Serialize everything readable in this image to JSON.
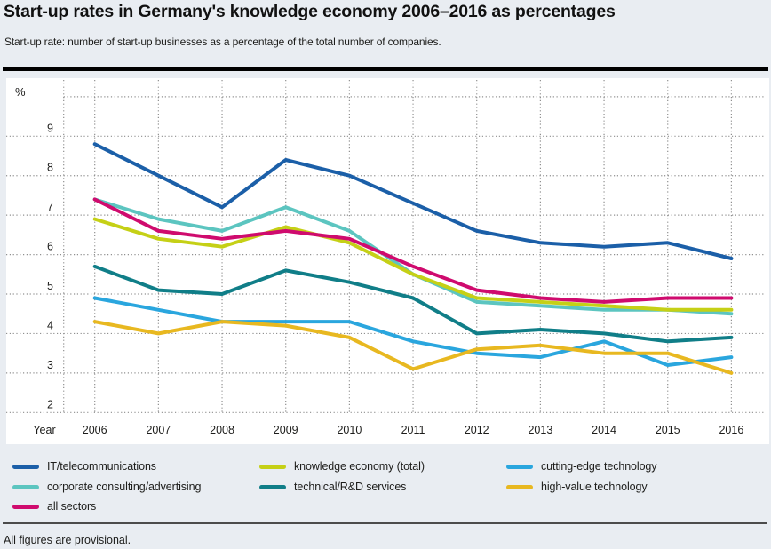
{
  "header": {
    "title": "Start-up rates in Germany's knowledge economy 2006–2016 as percentages",
    "subtitle": "Start-up rate: number of start-up businesses as a percentage of the total number of companies."
  },
  "footnote": "All figures are provisional.",
  "colors": {
    "background": "#e9edf2",
    "plot_background": "#ffffff",
    "gridline": "#8f8f8f",
    "text": "#1d1d1b"
  },
  "chart_data": {
    "type": "line",
    "title": "Start-up rates in Germany's knowledge economy 2006–2016 as percentages",
    "xlabel": "Year",
    "ylabel": "%",
    "categories": [
      "2006",
      "2007",
      "2008",
      "2009",
      "2010",
      "2011",
      "2012",
      "2013",
      "2014",
      "2015",
      "2016"
    ],
    "y_ticks": [
      9,
      8,
      7,
      6,
      5,
      4,
      3,
      2
    ],
    "gridlines_y": [
      10,
      9,
      8,
      7,
      6,
      5,
      4,
      3,
      2
    ],
    "ylim": [
      2,
      10
    ],
    "grid": "dotted",
    "legend_position": "bottom",
    "series": [
      {
        "name": "cutting-edge technology",
        "color": "#2aa6de",
        "values": [
          4.9,
          4.6,
          4.3,
          4.3,
          4.3,
          3.8,
          3.5,
          3.4,
          3.8,
          3.2,
          3.4
        ]
      },
      {
        "name": "high-value technology",
        "color": "#e8b820",
        "values": [
          4.3,
          4.0,
          4.3,
          4.2,
          3.9,
          3.1,
          3.6,
          3.7,
          3.5,
          3.5,
          3.0
        ]
      },
      {
        "name": "technical/R&D services",
        "color": "#107e88",
        "values": [
          5.7,
          5.1,
          5.0,
          5.6,
          5.3,
          4.9,
          4.0,
          4.1,
          4.0,
          3.8,
          3.9
        ]
      },
      {
        "name": "corporate consulting/advertising",
        "color": "#5cc5c0",
        "values": [
          7.4,
          6.9,
          6.6,
          7.2,
          6.6,
          5.5,
          4.8,
          4.7,
          4.6,
          4.6,
          4.5
        ]
      },
      {
        "name": "knowledge economy (total)",
        "color": "#c5d016",
        "values": [
          6.9,
          6.4,
          6.2,
          6.7,
          6.3,
          5.5,
          4.9,
          4.8,
          4.7,
          4.6,
          4.6
        ]
      },
      {
        "name": "all sectors",
        "color": "#cf0b6e",
        "values": [
          7.4,
          6.6,
          6.4,
          6.6,
          6.4,
          5.7,
          5.1,
          4.9,
          4.8,
          4.9,
          4.9
        ]
      },
      {
        "name": "IT/telecommunications",
        "color": "#1b5fa8",
        "values": [
          8.8,
          8.0,
          7.2,
          8.4,
          8.0,
          7.3,
          6.6,
          6.3,
          6.2,
          6.3,
          5.9
        ]
      }
    ]
  },
  "legend": {
    "rows": [
      [
        "IT/telecommunications",
        "knowledge economy (total)",
        "cutting-edge technology"
      ],
      [
        "corporate consulting/advertising",
        "technical/R&D services",
        "high-value technology"
      ],
      [
        "all sectors"
      ]
    ]
  }
}
